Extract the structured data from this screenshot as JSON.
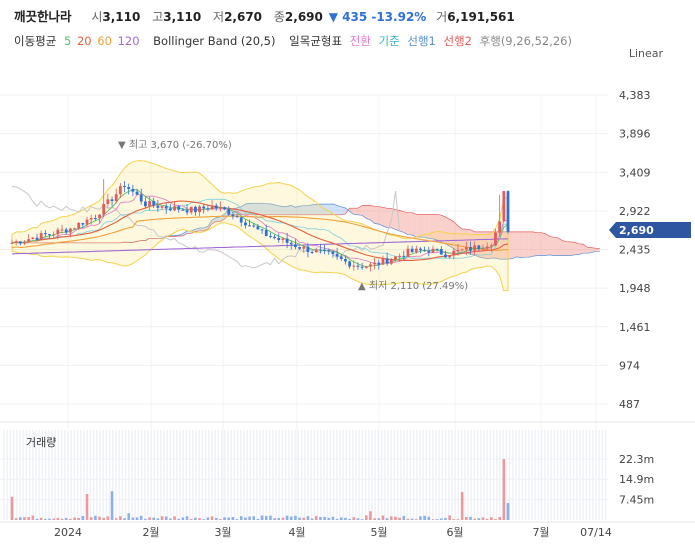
{
  "header": {
    "name": "깨끗한나라",
    "open_label": "시",
    "open": "3,110",
    "high_label": "고",
    "high": "3,110",
    "low_label": "저",
    "low": "2,670",
    "close_label": "종",
    "close": "2,690",
    "change": "▼ 435 -13.92%",
    "volume_label": "거",
    "volume": "6,191,561"
  },
  "indicators": {
    "ma_label": "이동평균",
    "ma5": "5",
    "ma20": "20",
    "ma60": "60",
    "ma120": "120",
    "bb": "Bollinger Band (20,5)",
    "ichi_label": "일목균형표",
    "conv": "전환",
    "base": "기준",
    "lead1": "선행1",
    "lead2": "선행2",
    "lag": "후행(9,26,52,26)"
  },
  "scale_mode": "Linear",
  "colors": {
    "up": "#e35b5b",
    "down": "#2f6fd6",
    "ma5": "#5bbf6a",
    "ma20": "#e6603f",
    "ma60": "#f2a23a",
    "ma120": "#a26ad6",
    "bb": "#f7d64a",
    "conv": "#e47ac9",
    "base": "#38b4c9",
    "lead1": "#5b8fd6",
    "lead2": "#e35b5b",
    "current": "#2f56a0"
  },
  "chart_data": {
    "type": "candlestick",
    "price_axis": {
      "ticks": [
        4383,
        3896,
        3409,
        2922,
        2435,
        1948,
        1461,
        974,
        487
      ],
      "tick_labels": [
        "4,383",
        "3,896",
        "3,409",
        "2,922",
        "2,435",
        "1,948",
        "1,461",
        "974",
        "487"
      ]
    },
    "current_price": {
      "value": 2690,
      "label": "2,690"
    },
    "max_label": "▼ 최고 3,670 (-26.70%)",
    "max_value": 3670,
    "min_label": "▲ 최저 2,110 (27.49%)",
    "min_value": 2110,
    "x_labels": [
      "2024",
      "2월",
      "3월",
      "4월",
      "5월",
      "6월",
      "7월",
      "07/14"
    ],
    "volume_title": "거래량",
    "volume_axis": {
      "ticks": [
        22.3,
        14.9,
        7.45
      ],
      "tick_labels": [
        "22.3m",
        "14.9m",
        "7.45m"
      ]
    },
    "last_volume_m": 6.19
  }
}
